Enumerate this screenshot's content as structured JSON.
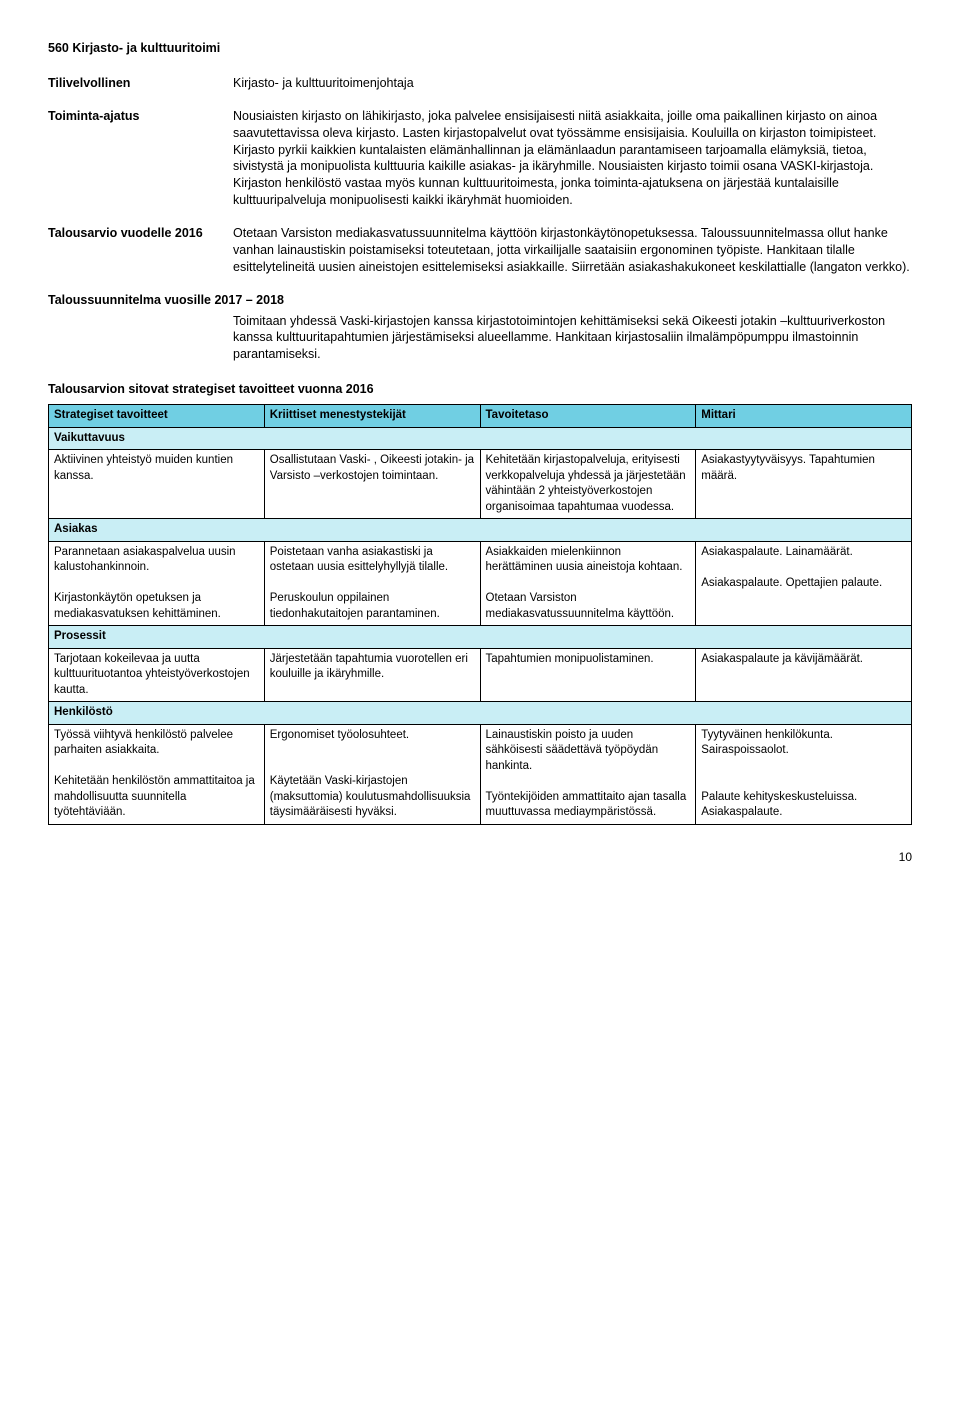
{
  "title": "560 Kirjasto- ja kulttuuritoimi",
  "defs": {
    "tilivelvollinen": {
      "label": "Tilivelvollinen",
      "value": "Kirjasto- ja kulttuuritoimenjohtaja"
    },
    "toiminta_ajatus": {
      "label": "Toiminta-ajatus",
      "value": "Nousiaisten kirjasto on lähikirjasto, joka palvelee ensisijaisesti niitä asiakkaita, joille oma paikallinen kirjasto on ainoa saavutettavissa oleva kirjasto. Lasten kirjastopalvelut ovat työssämme ensisijaisia. Kouluilla on kirjaston toimipisteet. Kirjasto pyrkii kaikkien kuntalaisten elämänhallinnan ja elämänlaadun parantamiseen tarjoamalla elämyksiä, tietoa, sivistystä ja monipuolista kulttuuria kaikille asiakas- ja ikäryhmille. Nousiaisten kirjasto toimii osana VASKI-kirjastoja. Kirjaston henkilöstö vastaa myös kunnan kulttuuritoimesta, jonka toiminta-ajatuksena on järjestää kuntalaisille kulttuuripalveluja monipuolisesti kaikki ikäryhmät huomioiden."
    },
    "talousarvio": {
      "label": "Talousarvio vuodelle 2016",
      "value": "Otetaan Varsiston mediakasvatussuunnitelma käyttöön kirjastonkäytönopetuksessa. Taloussuunnitelmassa ollut hanke vanhan lainaustiskin poistamiseksi toteutetaan, jotta virkailijalle saataisiin ergonominen työpiste. Hankitaan tilalle esittelytelineitä uusien aineistojen esittelemiseksi asiakkaille. Siirretään asiakashakukoneet keskilattialle (langaton verkko)."
    },
    "taloussuunnitelma": {
      "label": "Taloussuunnitelma vuosille 2017 – 2018",
      "value": "Toimitaan yhdessä Vaski-kirjastojen kanssa kirjastotoimintojen kehittämiseksi sekä Oikeesti jotakin –kulttuuriverkoston kanssa kulttuuritapahtumien järjestämiseksi alueellamme. Hankitaan kirjastosaliin ilmalämpöpumppu ilmastoinnin parantamiseksi."
    }
  },
  "table_heading": "Talousarvion sitovat strategiset tavoitteet vuonna 2016",
  "colors": {
    "header_bg": "#70cfe3",
    "section_bg": "#c9eef5"
  },
  "cols": [
    "Strategiset tavoitteet",
    "Kriittiset menestystekijät",
    "Tavoitetaso",
    "Mittari"
  ],
  "sections": [
    {
      "name": "Vaikuttavuus",
      "rows": [
        [
          "Aktiivinen yhteistyö muiden kuntien kanssa.",
          "Osallistutaan Vaski- , Oikeesti jotakin- ja Varsisto –verkostojen toimintaan.",
          "Kehitetään kirjastopalveluja, erityisesti verkkopalveluja yhdessä ja järjestetään vähintään 2 yhteistyöverkostojen organisoimaa tapahtumaa vuodessa.",
          "Asiakastyytyväisyys. Tapahtumien määrä."
        ]
      ]
    },
    {
      "name": "Asiakas",
      "rows": [
        [
          "Parannetaan asiakaspalvelua uusin kalustohankinnoin.\n\nKirjastonkäytön opetuksen ja mediakasvatuksen kehittäminen.",
          "Poistetaan vanha asiakastiski ja ostetaan uusia esittelyhyllyjä tilalle.\n\nPeruskoulun oppilainen tiedonhakutaitojen parantaminen.",
          "Asiakkaiden mielenkiinnon herättäminen uusia aineistoja kohtaan.\n\nOtetaan Varsiston mediakasvatussuunnitelma käyttöön.",
          "Asiakaspalaute. Lainamäärät.\n\nAsiakaspalaute. Opettajien palaute."
        ]
      ]
    },
    {
      "name": "Prosessit",
      "rows": [
        [
          "Tarjotaan kokeilevaa ja uutta kulttuurituotantoa yhteistyöverkostojen kautta.",
          "Järjestetään tapahtumia vuorotellen eri kouluille ja ikäryhmille.",
          "Tapahtumien monipuolistaminen.",
          "Asiakaspalaute ja kävijämäärät."
        ]
      ]
    },
    {
      "name": "Henkilöstö",
      "rows": [
        [
          "Työssä viihtyvä henkilöstö palvelee parhaiten asiakkaita.\n\nKehitetään henkilöstön ammattitaitoa ja mahdollisuutta suunnitella työtehtäviään.",
          "Ergonomiset työolosuhteet.\n\n\nKäytetään Vaski-kirjastojen (maksuttomia) koulutusmahdollisuuksia täysimääräisesti hyväksi.",
          "Lainaustiskin poisto ja uuden sähköisesti säädettävä työpöydän hankinta.\n\nTyöntekijöiden ammattitaito ajan tasalla muuttuvassa mediaympäristössä.",
          "Tyytyväinen henkilökunta. Sairaspoissaolot.\n\n\nPalaute kehityskeskusteluissa. Asiakaspalaute."
        ]
      ]
    }
  ],
  "page_number": "10"
}
